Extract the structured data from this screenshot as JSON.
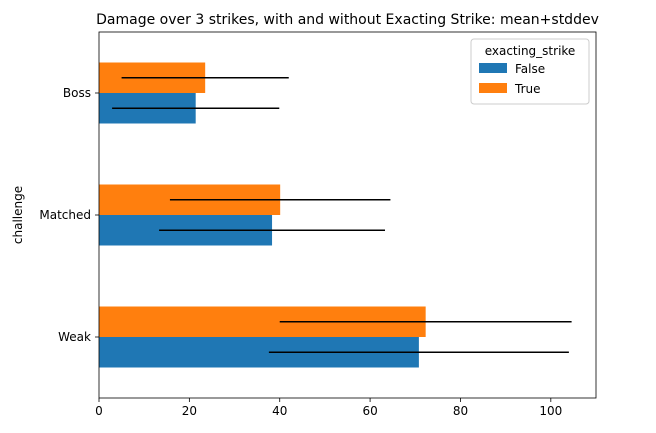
{
  "chart_data": {
    "type": "bar",
    "orientation": "horizontal",
    "title": "Damage over 3 strikes, with and without Exacting Strike: mean+stddev",
    "xlabel": "",
    "ylabel": "challenge",
    "categories": [
      "Weak",
      "Matched",
      "Boss"
    ],
    "xlim": [
      0,
      110
    ],
    "x_ticks": [
      0,
      20,
      40,
      60,
      80,
      100
    ],
    "grid": false,
    "legend": {
      "title": "exacting_strike",
      "placement": "top-right"
    },
    "series": [
      {
        "name": "False",
        "color": "#1f77b4",
        "values": [
          70.8,
          38.3,
          21.4
        ],
        "stddev": [
          33.2,
          25.0,
          18.5
        ]
      },
      {
        "name": "True",
        "color": "#ff7f0e",
        "values": [
          72.3,
          40.1,
          23.5
        ],
        "stddev": [
          32.3,
          24.4,
          18.5
        ]
      }
    ]
  }
}
